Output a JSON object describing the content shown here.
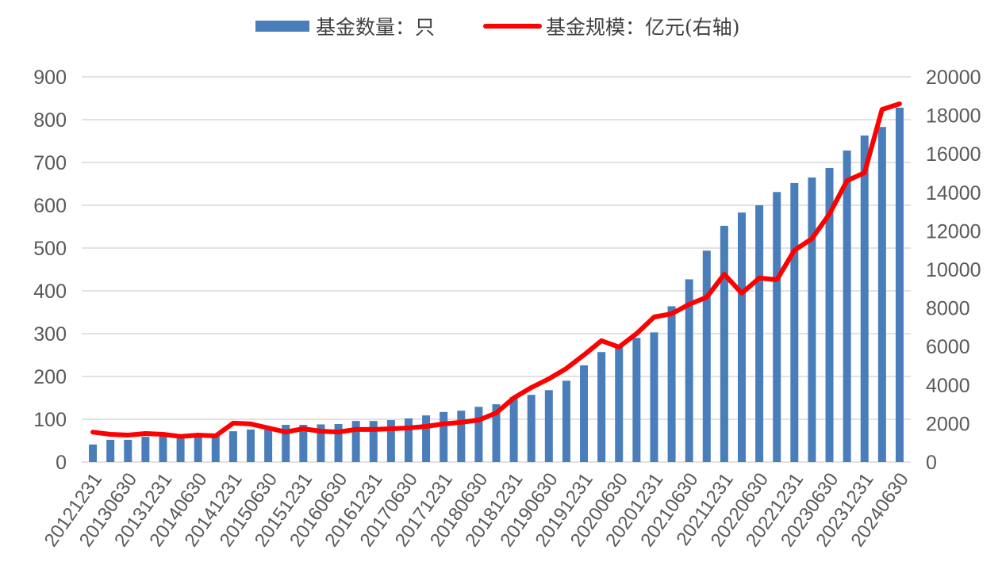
{
  "chart_data": {
    "type": "bar",
    "title": "",
    "xlabel": "",
    "categories": [
      "20121231",
      "",
      "20130630",
      "",
      "20131231",
      "",
      "20140630",
      "",
      "20141231",
      "",
      "20150630",
      "",
      "20151231",
      "",
      "20160630",
      "",
      "20161231",
      "",
      "20170630",
      "",
      "20171231",
      "",
      "20180630",
      "",
      "20181231",
      "",
      "20190630",
      "",
      "20191231",
      "",
      "20200630",
      "",
      "20201231",
      "",
      "20210630",
      "",
      "20211231",
      "",
      "20220630",
      "",
      "20221231",
      "",
      "20230630",
      "",
      "20231231",
      "",
      "20240630"
    ],
    "series": [
      {
        "name": "基金数量：只",
        "type": "bar",
        "axis": "left",
        "color": "#4a7ebb",
        "values": [
          41,
          52,
          52,
          59,
          61,
          59,
          62,
          63,
          72,
          76,
          80,
          87,
          87,
          88,
          89,
          96,
          96,
          98,
          102,
          109,
          117,
          120,
          129,
          135,
          152,
          157,
          168,
          190,
          226,
          257,
          274,
          290,
          303,
          364,
          427,
          494,
          552,
          583,
          600,
          631,
          652,
          665,
          687,
          728,
          763,
          783,
          828
        ]
      },
      {
        "name": "基金规模：亿元(右轴)",
        "type": "line",
        "axis": "right",
        "color": "#ff0000",
        "values": [
          1550,
          1440,
          1400,
          1480,
          1440,
          1330,
          1400,
          1360,
          2020,
          1980,
          1770,
          1560,
          1730,
          1600,
          1560,
          1690,
          1690,
          1730,
          1770,
          1850,
          1980,
          2060,
          2180,
          2550,
          3330,
          3870,
          4320,
          4860,
          5560,
          6300,
          5970,
          6670,
          7530,
          7700,
          8190,
          8560,
          9750,
          8770,
          9550,
          9470,
          10990,
          11600,
          12880,
          14610,
          15020,
          18310,
          18600
        ]
      }
    ],
    "y_left": {
      "min": 0,
      "max": 900,
      "ticks": [
        0,
        100,
        200,
        300,
        400,
        500,
        600,
        700,
        800,
        900
      ]
    },
    "y_right": {
      "min": 0,
      "max": 20000,
      "ticks": [
        0,
        2000,
        4000,
        6000,
        8000,
        10000,
        12000,
        14000,
        16000,
        18000,
        20000
      ]
    },
    "grid": true,
    "legend": "top-center"
  }
}
